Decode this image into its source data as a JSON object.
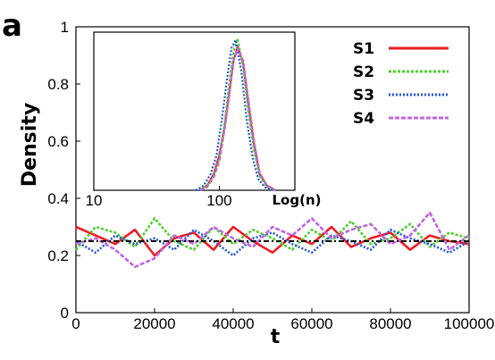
{
  "panel_label": "a",
  "chart_data": {
    "type": "line",
    "xlabel": "t",
    "ylabel": "Density",
    "xlim": [
      0,
      100000
    ],
    "ylim": [
      0,
      1
    ],
    "x_ticks": [
      "0",
      "20000",
      "40000",
      "60000",
      "80000",
      "100000"
    ],
    "y_ticks": [
      "0",
      "0.2",
      "0.4",
      "0.6",
      "0.8",
      "1"
    ],
    "reference_line": 0.25,
    "series": [
      {
        "name": "S1",
        "color": "#ee1c25",
        "dash": "solid",
        "x": [
          0,
          5000,
          10000,
          15000,
          20000,
          25000,
          30000,
          35000,
          40000,
          45000,
          50000,
          55000,
          60000,
          65000,
          70000,
          75000,
          80000,
          85000,
          90000,
          95000,
          100000
        ],
        "y": [
          0.3,
          0.27,
          0.24,
          0.29,
          0.2,
          0.26,
          0.28,
          0.22,
          0.3,
          0.25,
          0.21,
          0.27,
          0.24,
          0.3,
          0.23,
          0.26,
          0.28,
          0.22,
          0.27,
          0.25,
          0.24
        ]
      },
      {
        "name": "S2",
        "color": "#4cd12a",
        "dash": "3,2",
        "x": [
          0,
          5000,
          10000,
          15000,
          20000,
          25000,
          30000,
          35000,
          40000,
          45000,
          50000,
          55000,
          60000,
          65000,
          70000,
          75000,
          80000,
          85000,
          90000,
          95000,
          100000
        ],
        "y": [
          0.22,
          0.3,
          0.28,
          0.23,
          0.33,
          0.25,
          0.22,
          0.3,
          0.24,
          0.29,
          0.26,
          0.22,
          0.29,
          0.25,
          0.32,
          0.24,
          0.26,
          0.31,
          0.23,
          0.28,
          0.26
        ]
      },
      {
        "name": "S3",
        "color": "#2255dd",
        "dash": "2,2",
        "x": [
          0,
          5000,
          10000,
          15000,
          20000,
          25000,
          30000,
          35000,
          40000,
          45000,
          50000,
          55000,
          60000,
          65000,
          70000,
          75000,
          80000,
          85000,
          90000,
          95000,
          100000
        ],
        "y": [
          0.25,
          0.21,
          0.27,
          0.24,
          0.26,
          0.22,
          0.29,
          0.25,
          0.2,
          0.26,
          0.28,
          0.24,
          0.21,
          0.27,
          0.25,
          0.22,
          0.29,
          0.26,
          0.24,
          0.21,
          0.25
        ]
      },
      {
        "name": "S4",
        "color": "#c066e0",
        "dash": "5,2",
        "x": [
          0,
          5000,
          10000,
          15000,
          20000,
          25000,
          30000,
          35000,
          40000,
          45000,
          50000,
          55000,
          60000,
          65000,
          70000,
          75000,
          80000,
          85000,
          90000,
          95000,
          100000
        ],
        "y": [
          0.24,
          0.26,
          0.22,
          0.16,
          0.19,
          0.27,
          0.24,
          0.3,
          0.26,
          0.23,
          0.3,
          0.27,
          0.33,
          0.26,
          0.29,
          0.31,
          0.24,
          0.27,
          0.35,
          0.22,
          0.27
        ]
      }
    ],
    "inset": {
      "type": "line",
      "x_scale": "log",
      "xlabel": "Log(n)",
      "xlim": [
        10,
        400
      ],
      "ylim": [
        0,
        1
      ],
      "x_ticks": [
        "10",
        "100"
      ],
      "series": [
        {
          "name": "S1",
          "x": [
            70,
            80,
            90,
            100,
            110,
            120,
            130,
            140,
            155,
            170,
            190,
            210,
            240,
            280
          ],
          "y": [
            0.0,
            0.03,
            0.1,
            0.22,
            0.4,
            0.62,
            0.82,
            0.91,
            0.8,
            0.55,
            0.28,
            0.1,
            0.03,
            0.0
          ]
        },
        {
          "name": "S2",
          "x": [
            70,
            80,
            90,
            100,
            110,
            120,
            130,
            140,
            155,
            170,
            190,
            210,
            240,
            280
          ],
          "y": [
            0.0,
            0.03,
            0.09,
            0.2,
            0.42,
            0.68,
            0.88,
            0.96,
            0.78,
            0.5,
            0.24,
            0.09,
            0.02,
            0.0
          ]
        },
        {
          "name": "S3",
          "x": [
            65,
            75,
            85,
            95,
            105,
            115,
            125,
            135,
            150,
            165,
            185,
            205,
            230,
            270
          ],
          "y": [
            0.0,
            0.03,
            0.1,
            0.22,
            0.45,
            0.7,
            0.9,
            0.95,
            0.75,
            0.45,
            0.2,
            0.07,
            0.02,
            0.0
          ]
        },
        {
          "name": "S4",
          "x": [
            70,
            80,
            90,
            100,
            110,
            120,
            130,
            140,
            155,
            170,
            190,
            210,
            240,
            280
          ],
          "y": [
            0.0,
            0.02,
            0.08,
            0.18,
            0.38,
            0.6,
            0.82,
            0.9,
            0.82,
            0.58,
            0.3,
            0.11,
            0.03,
            0.0
          ]
        }
      ]
    }
  }
}
